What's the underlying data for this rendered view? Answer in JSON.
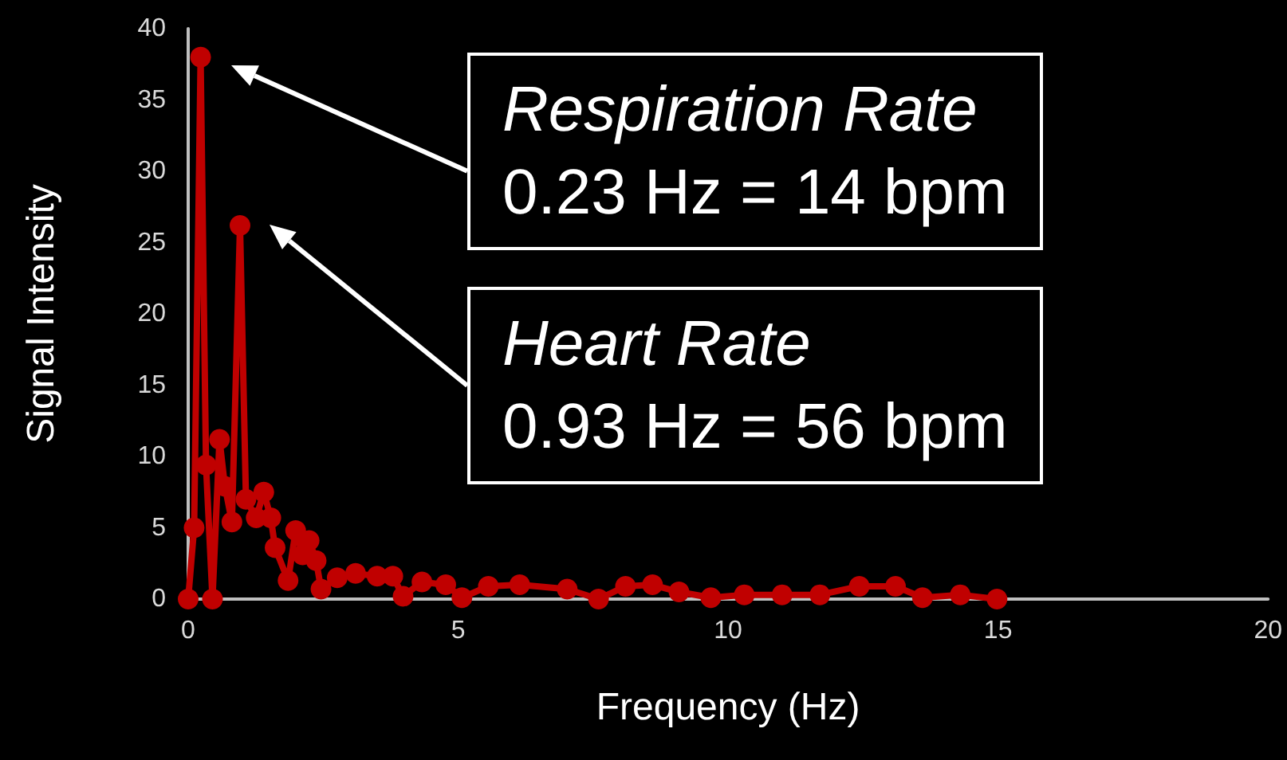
{
  "chart_data": {
    "type": "line",
    "xlabel": "Frequency (Hz)",
    "ylabel": "Signal Intensity",
    "x": [
      0,
      0.11,
      0.23,
      0.33,
      0.45,
      0.58,
      0.68,
      0.81,
      0.96,
      1.07,
      1.26,
      1.4,
      1.53,
      1.61,
      1.85,
      1.99,
      2.12,
      2.24,
      2.37,
      2.46,
      2.76,
      3.1,
      3.5,
      3.79,
      3.98,
      4.33,
      4.77,
      5.07,
      5.56,
      6.14,
      7.02,
      7.6,
      8.1,
      8.6,
      9.09,
      9.68,
      10.3,
      11,
      11.7,
      12.43,
      13.1,
      13.6,
      14.3,
      14.98
    ],
    "series": [
      {
        "color": "#c00000",
        "values": [
          0,
          5,
          38,
          9.4,
          0,
          11.2,
          7.9,
          5.4,
          26.2,
          7,
          5.7,
          7.5,
          5.7,
          3.6,
          1.3,
          4.8,
          3.1,
          4.1,
          2.7,
          0.7,
          1.5,
          1.8,
          1.6,
          1.6,
          0.2,
          1.2,
          1,
          0.1,
          0.9,
          1,
          0.7,
          0,
          0.9,
          1,
          0.5,
          0.1,
          0.3,
          0.3,
          0.3,
          0.9,
          0.9,
          0.1,
          0.3,
          0
        ]
      }
    ],
    "xlim": [
      0,
      20
    ],
    "xticks": [
      0,
      5,
      10,
      15,
      20
    ],
    "ylim": [
      0,
      40
    ],
    "yticks": [
      0,
      5,
      10,
      15,
      20,
      25,
      30,
      35,
      40
    ],
    "grid": false,
    "marker": "circle",
    "line_style": "solid",
    "annotations": [
      "Respiration Rate\n0.23 Hz = 14 bpm",
      "Heart Rate\n0.93 Hz = 56 bpm"
    ]
  }
}
